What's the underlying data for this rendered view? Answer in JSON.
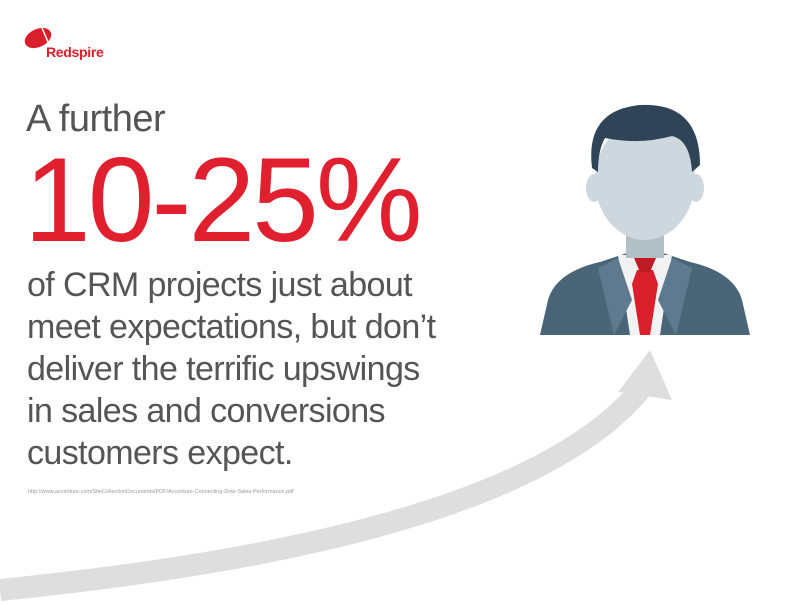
{
  "brand": {
    "name": "Redspire",
    "color": "#d91f2b"
  },
  "headline": {
    "lead": "A further",
    "stat": "10-25%",
    "stat_color": "#e0202e"
  },
  "body_lines": [
    "of CRM projects just about",
    "meet expectations, but don’t",
    "deliver the terrific upswings",
    "in sales and conversions",
    "customers expect."
  ],
  "source": "http://www.accenture.com/SiteCollectionDocuments/PDF/Accenture-Connecting-Dots-Sales-Performance.pdf",
  "illustration": {
    "icons": [
      "businessman-icon",
      "arrow-up-curve-icon"
    ],
    "suit_color": "#4a6478",
    "tie_color": "#d91f2b",
    "arrow_color": "#dcdcdc"
  }
}
